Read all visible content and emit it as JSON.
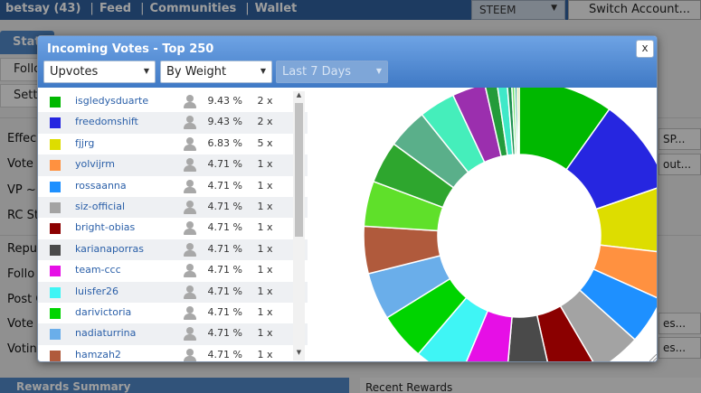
{
  "topbar": {
    "account": "betsay (43)",
    "nav": [
      "Feed",
      "Communities",
      "Wallet"
    ],
    "chain_select": "STEEM",
    "switch_account": "Switch Account..."
  },
  "background": {
    "tab": "Stats",
    "left_items": [
      "Follo",
      "Setti"
    ],
    "labels": [
      "Effec",
      "Vote A",
      "VP ~>",
      "RC St",
      "Reput",
      "Follo",
      "Post C",
      "Vote C",
      "Votin"
    ],
    "right_buttons": [
      "SP...",
      "out...",
      "es...",
      "es..."
    ],
    "bottom_left": "Rewards Summary",
    "bottom_right": "Recent Rewards"
  },
  "modal": {
    "title": "Incoming Votes - Top 250",
    "close": "x",
    "vote_type": "Upvotes",
    "sort": "By Weight",
    "period": "Last 7 Days"
  },
  "votes": [
    {
      "name": "isgledysduarte",
      "pct": "9.43 %",
      "count": "2 x",
      "color": "#00b800"
    },
    {
      "name": "freedomshift",
      "pct": "9.43 %",
      "count": "2 x",
      "color": "#2626e0"
    },
    {
      "name": "fjjrg",
      "pct": "6.83 %",
      "count": "5 x",
      "color": "#dddd00"
    },
    {
      "name": "yolvijrm",
      "pct": "4.71 %",
      "count": "1 x",
      "color": "#ff9140"
    },
    {
      "name": "rossaanna",
      "pct": "4.71 %",
      "count": "1 x",
      "color": "#1e90ff"
    },
    {
      "name": "siz-official",
      "pct": "4.71 %",
      "count": "1 x",
      "color": "#a3a3a3"
    },
    {
      "name": "bright-obias",
      "pct": "4.71 %",
      "count": "1 x",
      "color": "#8b0000"
    },
    {
      "name": "karianaporras",
      "pct": "4.71 %",
      "count": "1 x",
      "color": "#4a4a4a"
    },
    {
      "name": "team-ccc",
      "pct": "4.71 %",
      "count": "1 x",
      "color": "#e60fe6"
    },
    {
      "name": "luisfer26",
      "pct": "4.71 %",
      "count": "1 x",
      "color": "#3ff5f5"
    },
    {
      "name": "darivictoria",
      "pct": "4.71 %",
      "count": "1 x",
      "color": "#00d400"
    },
    {
      "name": "nadiaturrina",
      "pct": "4.71 %",
      "count": "1 x",
      "color": "#6aaeea"
    },
    {
      "name": "hamzah2",
      "pct": "4.71 %",
      "count": "1 x",
      "color": "#b05a3c"
    }
  ],
  "chart_data": {
    "type": "pie",
    "donut": true,
    "slices": [
      {
        "label": "isgledysduarte",
        "value": 9.43,
        "color": "#00b800"
      },
      {
        "label": "freedomshift",
        "value": 9.43,
        "color": "#2626e0"
      },
      {
        "label": "fjjrg",
        "value": 6.83,
        "color": "#dddd00"
      },
      {
        "label": "yolvijrm",
        "value": 4.71,
        "color": "#ff9140"
      },
      {
        "label": "rossaanna",
        "value": 4.71,
        "color": "#1e90ff"
      },
      {
        "label": "siz-official",
        "value": 4.71,
        "color": "#a3a3a3"
      },
      {
        "label": "bright-obias",
        "value": 4.71,
        "color": "#8b0000"
      },
      {
        "label": "karianaporras",
        "value": 4.71,
        "color": "#4a4a4a"
      },
      {
        "label": "team-ccc",
        "value": 4.71,
        "color": "#e60fe6"
      },
      {
        "label": "luisfer26",
        "value": 4.71,
        "color": "#3ff5f5"
      },
      {
        "label": "darivictoria",
        "value": 4.71,
        "color": "#00d400"
      },
      {
        "label": "nadiaturrina",
        "value": 4.71,
        "color": "#6aaeea"
      },
      {
        "label": "hamzah2",
        "value": 4.71,
        "color": "#b05a3c"
      },
      {
        "value": 4.5,
        "color": "#5fe02a"
      },
      {
        "value": 4.2,
        "color": "#2ea62e"
      },
      {
        "value": 4.0,
        "color": "#5aaf8a"
      },
      {
        "value": 3.6,
        "color": "#45eebb"
      },
      {
        "value": 3.3,
        "color": "#9b2fae"
      },
      {
        "value": 1.2,
        "color": "#239b3a"
      },
      {
        "value": 1.0,
        "color": "#3fe8c8"
      },
      {
        "value": 0.45,
        "color": "#1b8f4f"
      },
      {
        "value": 0.3,
        "color": "#6fe06f"
      },
      {
        "value": 0.25,
        "color": "#2ea88a"
      },
      {
        "value": 0.2,
        "color": "#c0c040"
      }
    ]
  }
}
